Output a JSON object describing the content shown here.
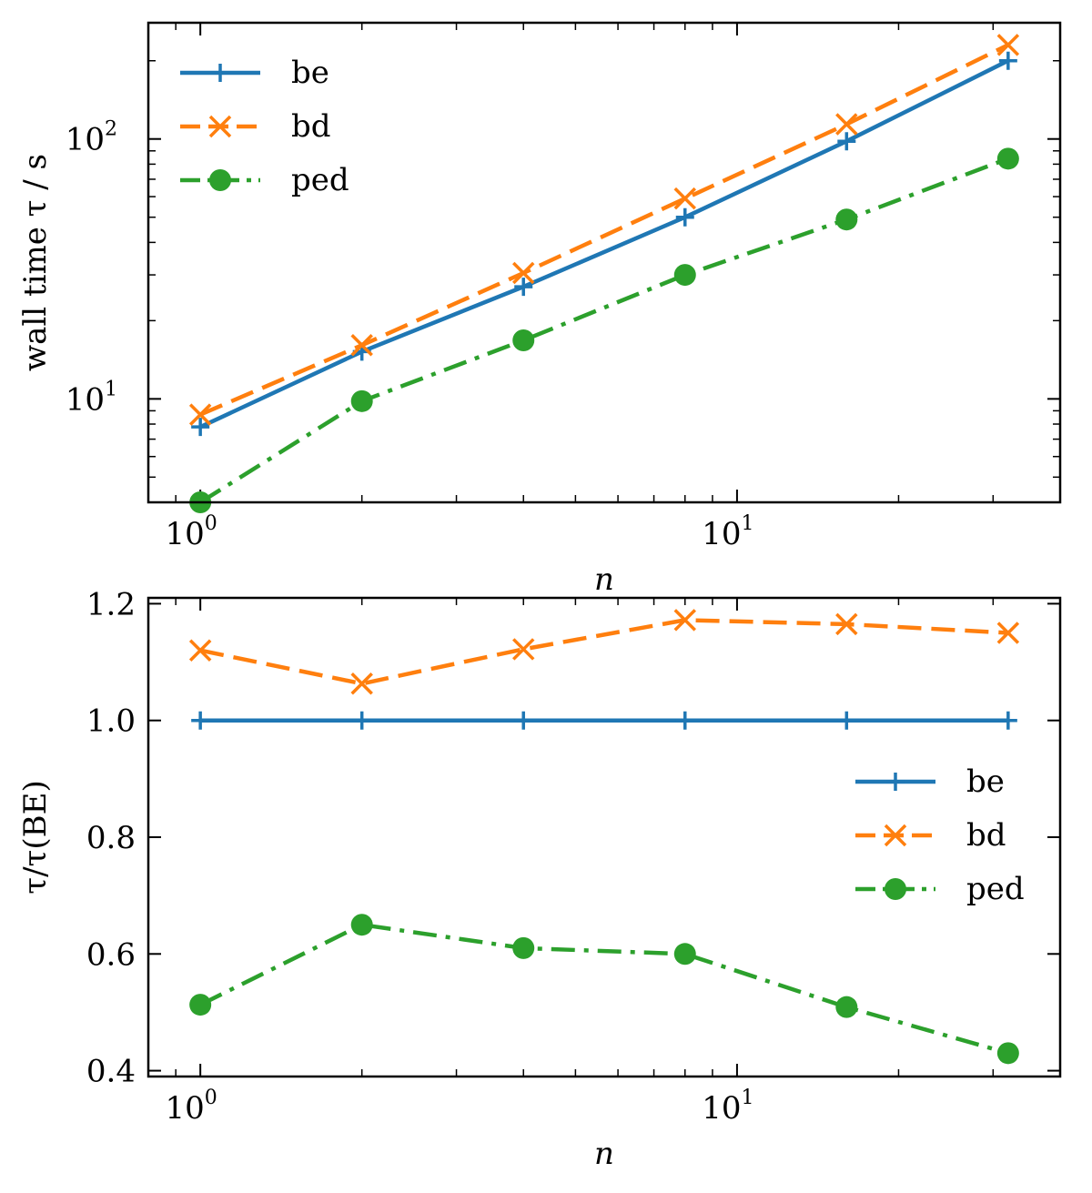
{
  "chart_data": [
    {
      "type": "line",
      "panel": "top",
      "x_scale": "log",
      "y_scale": "log",
      "x": [
        1,
        2,
        4,
        8,
        16,
        32
      ],
      "xlabel": "n",
      "ylabel": "wall time τ / s",
      "xlim": [
        0.8,
        40
      ],
      "ylim": [
        4,
        280
      ],
      "x_tick_labels": [
        {
          "base": "10",
          "exp": "0"
        },
        {
          "base": "10",
          "exp": "1"
        }
      ],
      "y_tick_labels": [
        {
          "base": "10",
          "exp": "1"
        },
        {
          "base": "10",
          "exp": "2"
        }
      ],
      "legend_position": "upper left",
      "series": [
        {
          "name": "be",
          "values": [
            7.8,
            15.2,
            27,
            50,
            98,
            200
          ],
          "color": "#1f77b4",
          "marker": "plus",
          "line": "solid"
        },
        {
          "name": "bd",
          "values": [
            8.7,
            16.1,
            30.5,
            59,
            114,
            230
          ],
          "color": "#ff7f0e",
          "marker": "x",
          "line": "dashed"
        },
        {
          "name": "ped",
          "values": [
            4.0,
            9.8,
            16.8,
            30,
            49,
            84
          ],
          "color": "#2ca02c",
          "marker": "circle",
          "line": "dashdot"
        }
      ]
    },
    {
      "type": "line",
      "panel": "bottom",
      "x_scale": "log",
      "y_scale": "linear",
      "x": [
        1,
        2,
        4,
        8,
        16,
        32
      ],
      "xlabel": "n",
      "ylabel": "τ/τ(BE)",
      "xlim": [
        0.8,
        40
      ],
      "ylim": [
        0.39,
        1.21
      ],
      "y_ticks": [
        0.4,
        0.6,
        0.8,
        1.0,
        1.2
      ],
      "y_tick_labels": [
        "0.4",
        "0.6",
        "0.8",
        "1.0",
        "1.2"
      ],
      "x_tick_labels": [
        {
          "base": "10",
          "exp": "0"
        },
        {
          "base": "10",
          "exp": "1"
        }
      ],
      "legend_position": "center right",
      "series": [
        {
          "name": "be",
          "values": [
            1.0,
            1.0,
            1.0,
            1.0,
            1.0,
            1.0
          ],
          "color": "#1f77b4",
          "marker": "plus",
          "line": "solid"
        },
        {
          "name": "bd",
          "values": [
            1.12,
            1.063,
            1.122,
            1.172,
            1.165,
            1.15
          ],
          "color": "#ff7f0e",
          "marker": "x",
          "line": "dashed"
        },
        {
          "name": "ped",
          "values": [
            0.513,
            0.65,
            0.61,
            0.6,
            0.509,
            0.43
          ],
          "color": "#2ca02c",
          "marker": "circle",
          "line": "dashdot"
        }
      ]
    }
  ]
}
